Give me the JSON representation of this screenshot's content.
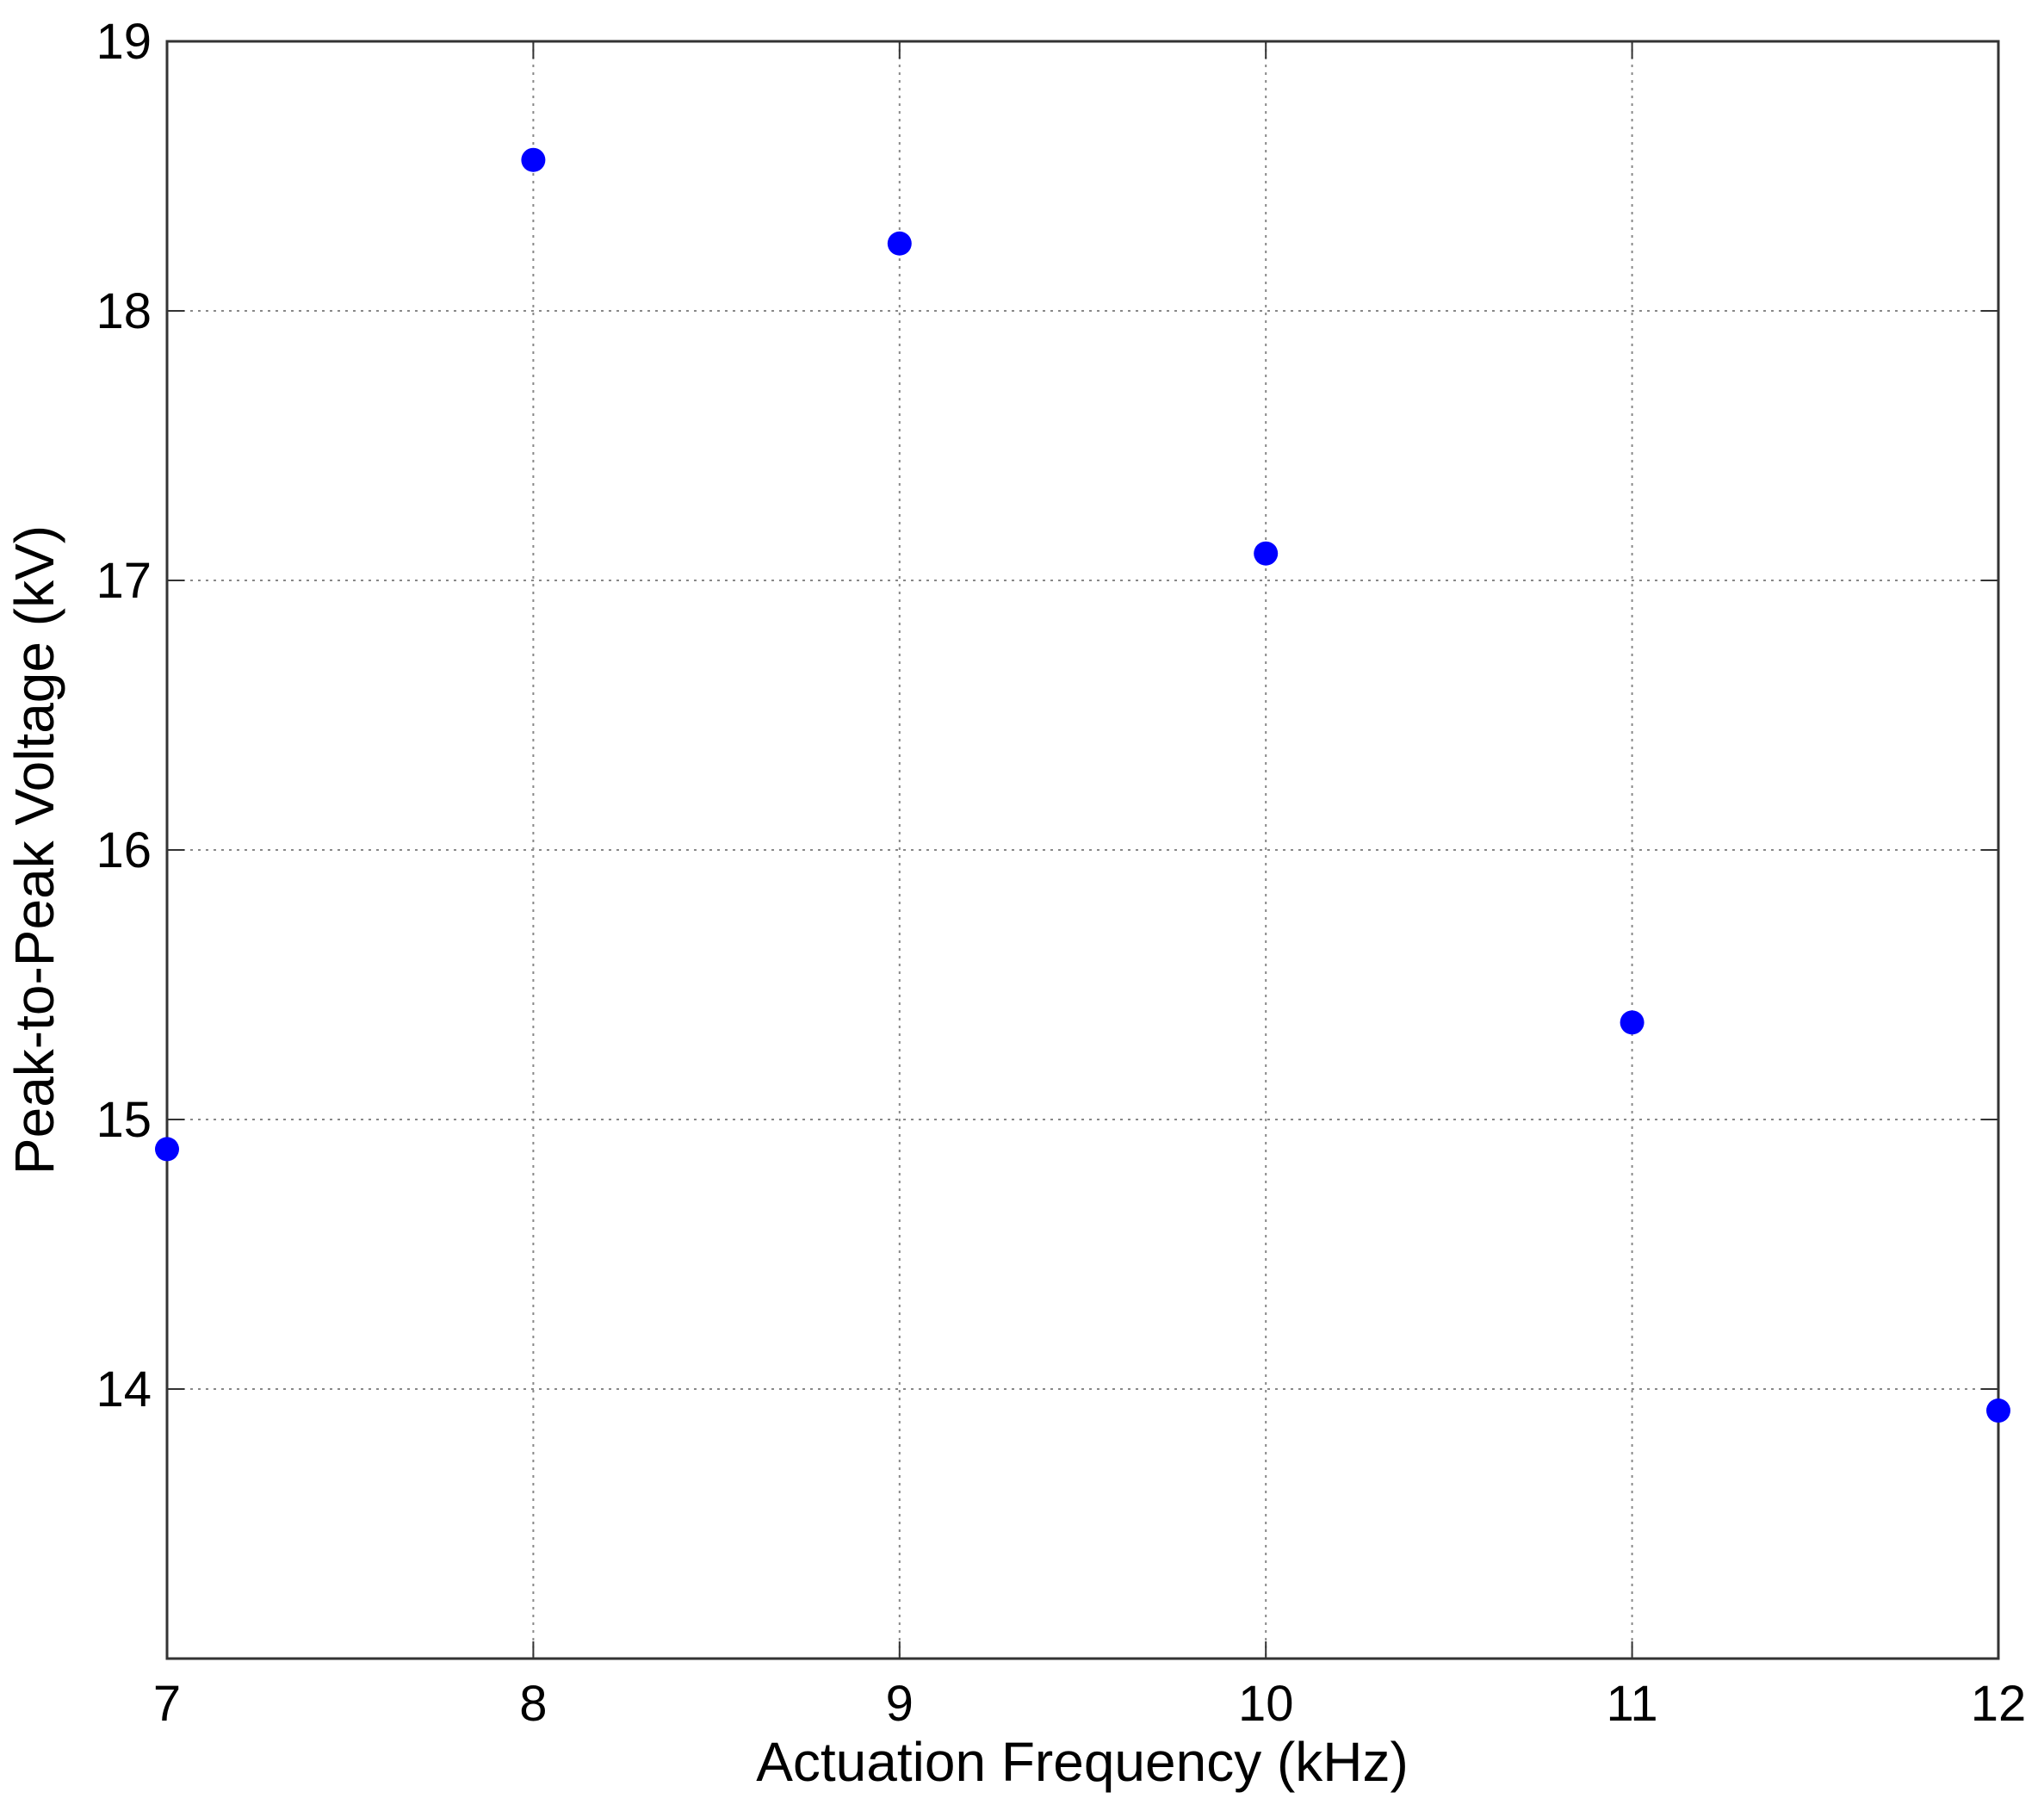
{
  "chart_data": {
    "type": "scatter",
    "x_label": "Actuation Frequency (kHz)",
    "y_label": "Peak-to-Peak Voltage (kV)",
    "x": [
      7,
      8,
      9,
      10,
      11,
      12
    ],
    "series": [
      {
        "name": "Peak-to-Peak Voltage",
        "color": "#0000ff",
        "values": [
          14.89,
          18.56,
          18.25,
          17.1,
          15.36,
          13.92
        ]
      }
    ],
    "xlim": [
      7,
      12
    ],
    "xticks": [
      7,
      8,
      9,
      10,
      11,
      12
    ],
    "ylim": [
      13,
      19
    ],
    "yticks": [
      14,
      15,
      16,
      17,
      18,
      19
    ],
    "grid": true
  }
}
